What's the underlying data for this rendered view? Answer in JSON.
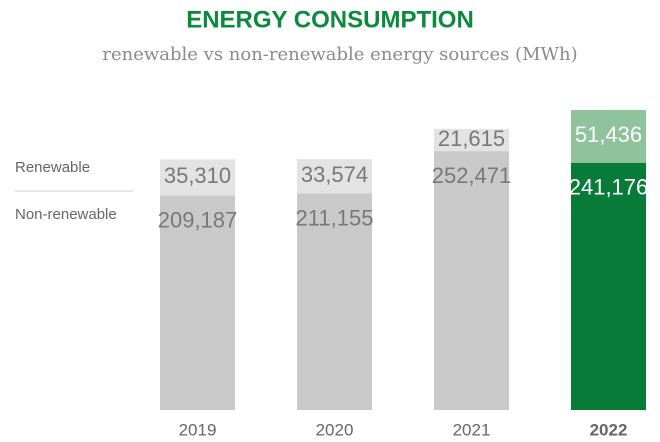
{
  "chart_data": {
    "type": "stacked_bar",
    "title": "ENERGY CONSUMPTION",
    "subtitle": "renewable vs non-renewable energy sources (MWh)",
    "categories": [
      "2019",
      "2020",
      "2021",
      "2022"
    ],
    "highlight_index": 3,
    "series": [
      {
        "name": "Non-renewable",
        "color": "#c9c9c9",
        "colors": [
          "#c9c9c9",
          "#c9c9c9",
          "#c9c9c9",
          "#087b38"
        ],
        "values": [
          209187,
          211155,
          252471,
          241176
        ],
        "value_labels": [
          "209,187",
          "211,155",
          "252,471",
          "241,176"
        ]
      },
      {
        "name": "Renewable",
        "color": "#e3e3e3",
        "colors": [
          "#e3e3e3",
          "#e3e3e3",
          "#e3e3e3",
          "#8fc39c"
        ],
        "values": [
          35310,
          33574,
          21615,
          51436
        ],
        "value_labels": [
          "35,310",
          "33,574",
          "21,615",
          "51,436"
        ]
      }
    ]
  }
}
